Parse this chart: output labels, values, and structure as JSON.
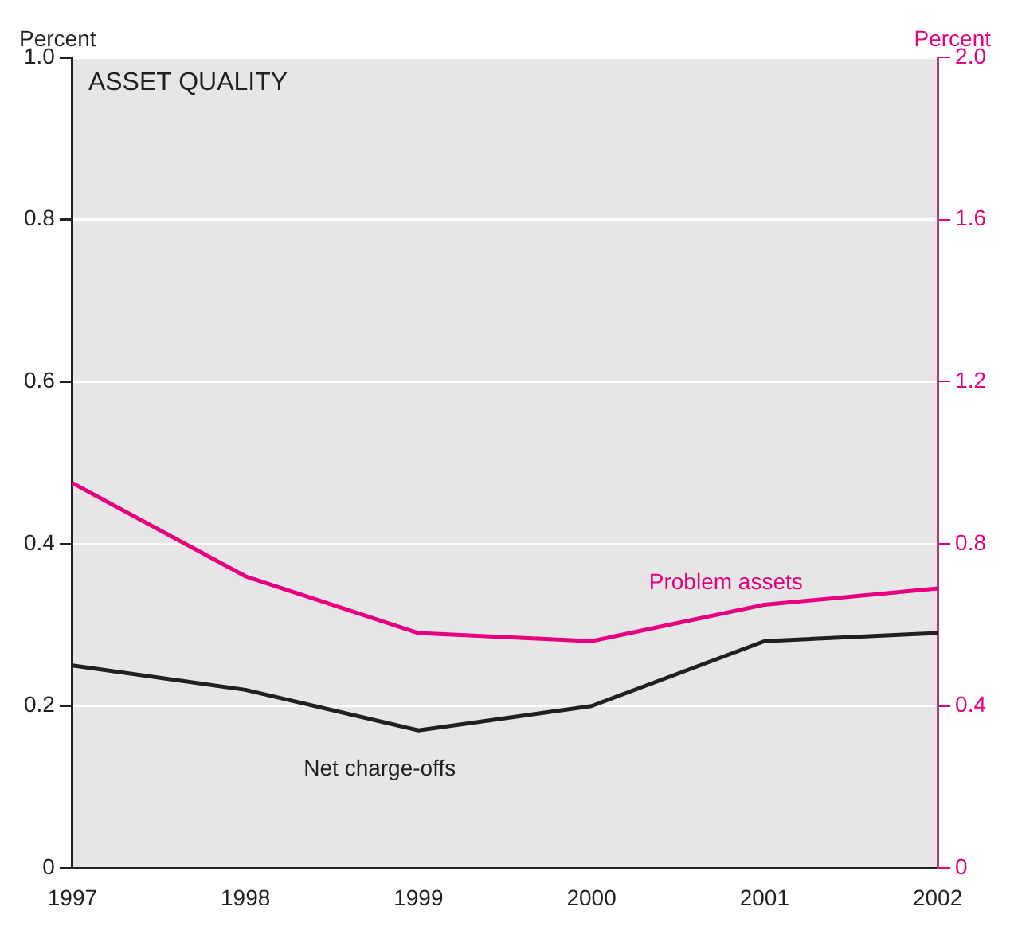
{
  "chart_data": {
    "type": "line",
    "title": "ASSET QUALITY",
    "ylabel": "Percent",
    "y2label": "Percent",
    "x": [
      1997,
      1998,
      1999,
      2000,
      2001,
      2002
    ],
    "xlim": [
      1997,
      2002
    ],
    "xticks": [
      1997,
      1998,
      1999,
      2000,
      2001,
      2002
    ],
    "ylim": [
      0,
      1
    ],
    "yticks": [
      0,
      0.2,
      0.4,
      0.6,
      0.8,
      {
        "value": 1,
        "label": "1.0"
      }
    ],
    "y2lim": [
      0,
      2
    ],
    "y2ticks": [
      0,
      0.4,
      0.8,
      1.2,
      1.6,
      {
        "value": 2,
        "label": "2.0"
      }
    ],
    "series": [
      {
        "name": "Net charge-offs",
        "color": "#231f20",
        "values": [
          0.25,
          0.22,
          0.17,
          0.2,
          0.28,
          0.29
        ]
      },
      {
        "name": "Problem assets",
        "color": "#e6007e",
        "axis": "y2",
        "values": [
          0.95,
          0.72,
          0.58,
          0.56,
          0.65,
          0.69
        ]
      }
    ],
    "grid": "y",
    "legend": false,
    "marker": "none",
    "line_style": "solid"
  }
}
